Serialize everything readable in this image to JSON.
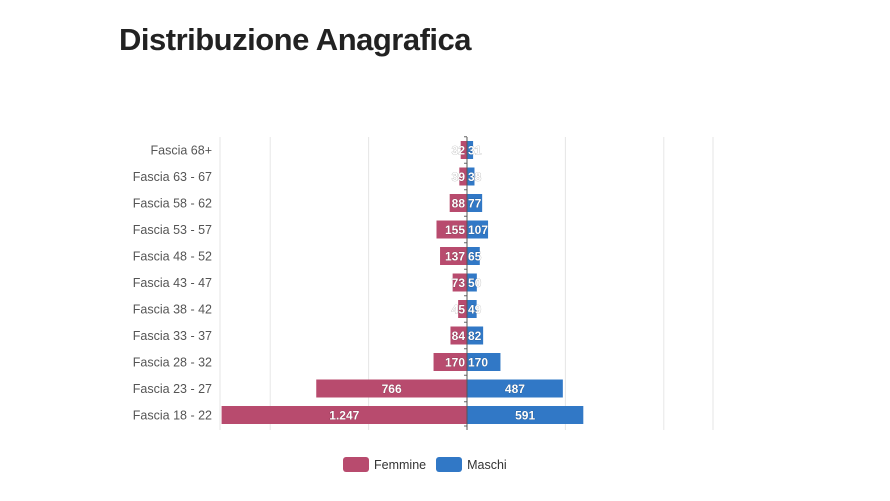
{
  "title": "Distribuzione Anagrafica",
  "colors": {
    "femmine": "#b84b6e",
    "maschi": "#3178c6"
  },
  "chart_data": {
    "type": "bar",
    "orientation": "horizontal-diverging",
    "categories": [
      "Fascia 68+",
      "Fascia 63 - 67",
      "Fascia 58 - 62",
      "Fascia 53 - 57",
      "Fascia 48 - 52",
      "Fascia 43 - 47",
      "Fascia 38 - 42",
      "Fascia 33 - 37",
      "Fascia 28 - 32",
      "Fascia 23 - 27",
      "Fascia 18 - 22"
    ],
    "series": [
      {
        "name": "Femmine",
        "values": [
          32,
          39,
          88,
          155,
          137,
          73,
          45,
          84,
          170,
          766,
          1247
        ],
        "labels": [
          "32",
          "39",
          "88",
          "155",
          "137",
          "73",
          "45",
          "84",
          "170",
          "766",
          "1.247"
        ]
      },
      {
        "name": "Maschi",
        "values": [
          31,
          38,
          77,
          107,
          65,
          50,
          49,
          82,
          170,
          487,
          591
        ],
        "labels": [
          "31",
          "38",
          "77",
          "107",
          "65",
          "50",
          "49",
          "82",
          "170",
          "487",
          "591"
        ]
      }
    ],
    "xlim": [
      -1250,
      1250
    ],
    "grid": true,
    "legend": "bottom-center"
  }
}
